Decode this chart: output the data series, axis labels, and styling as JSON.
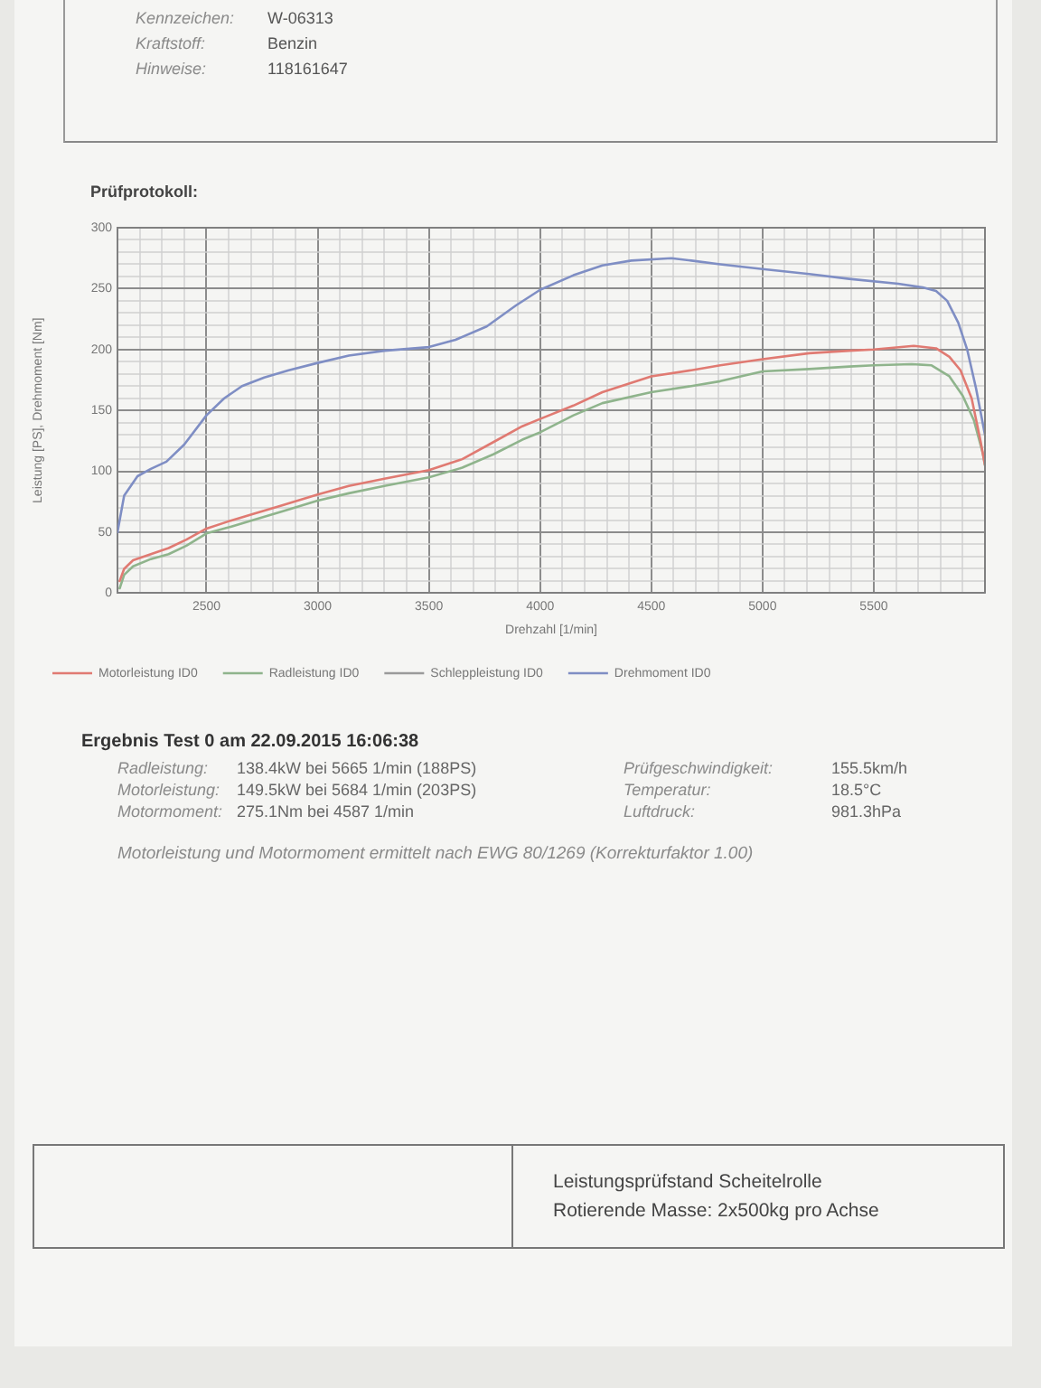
{
  "chart_data": {
    "type": "line",
    "title": "Prüfprotokoll:",
    "xlabel": "Drehzahl [1/min]",
    "ylabel": "Leistung [PS], Drehmoment [Nm]",
    "xlim": [
      2100,
      6000
    ],
    "xticks": [
      {
        "value": 2100,
        "label": null
      },
      {
        "value": 2200,
        "label": null
      },
      {
        "value": 2300,
        "label": null
      },
      {
        "value": 2400,
        "label": null
      },
      2500,
      {
        "value": 2600,
        "label": null
      },
      {
        "value": 2700,
        "label": null
      },
      {
        "value": 2800,
        "label": null
      },
      {
        "value": 2900,
        "label": null
      },
      3000,
      {
        "value": 3100,
        "label": null
      },
      {
        "value": 3200,
        "label": null
      },
      {
        "value": 3300,
        "label": null
      },
      {
        "value": 3400,
        "label": null
      },
      3500,
      {
        "value": 3600,
        "label": null
      },
      {
        "value": 3700,
        "label": null
      },
      {
        "value": 3800,
        "label": null
      },
      {
        "value": 3900,
        "label": null
      },
      4000,
      {
        "value": 4100,
        "label": null
      },
      {
        "value": 4200,
        "label": null
      },
      {
        "value": 4300,
        "label": null
      },
      {
        "value": 4400,
        "label": null
      },
      4500,
      {
        "value": 4600,
        "label": null
      },
      {
        "value": 4700,
        "label": null
      },
      {
        "value": 4800,
        "label": null
      },
      {
        "value": 4900,
        "label": null
      },
      5000,
      {
        "value": 5100,
        "label": null
      },
      {
        "value": 5200,
        "label": null
      },
      {
        "value": 5300,
        "label": null
      },
      {
        "value": 5400,
        "label": null
      },
      5500,
      {
        "value": 5600,
        "label": null
      },
      {
        "value": 5700,
        "label": null
      },
      {
        "value": 5800,
        "label": null
      },
      {
        "value": 5900,
        "label": null
      }
    ],
    "ylim": [
      0,
      300
    ],
    "yticks": [
      0,
      {
        "value": 10,
        "label": null
      },
      {
        "value": 20,
        "label": null
      },
      {
        "value": 30,
        "label": null
      },
      {
        "value": 40,
        "label": null
      },
      50,
      {
        "value": 60,
        "label": null
      },
      {
        "value": 70,
        "label": null
      },
      {
        "value": 80,
        "label": null
      },
      {
        "value": 90,
        "label": null
      },
      100,
      {
        "value": 110,
        "label": null
      },
      {
        "value": 120,
        "label": null
      },
      {
        "value": 130,
        "label": null
      },
      {
        "value": 140,
        "label": null
      },
      150,
      {
        "value": 160,
        "label": null
      },
      {
        "value": 170,
        "label": null
      },
      {
        "value": 180,
        "label": null
      },
      {
        "value": 190,
        "label": null
      },
      200,
      {
        "value": 210,
        "label": null
      },
      {
        "value": 220,
        "label": null
      },
      {
        "value": 230,
        "label": null
      },
      {
        "value": 240,
        "label": null
      },
      250,
      {
        "value": 260,
        "label": null
      },
      {
        "value": 270,
        "label": null
      },
      {
        "value": 280,
        "label": null
      },
      {
        "value": 290,
        "label": null
      },
      300
    ],
    "grid": true,
    "legend": "bottom left",
    "series": [
      {
        "name": "Motorleistung ID0",
        "color": "#e07a72",
        "x": [
          2110,
          2130,
          2170,
          2250,
          2330,
          2410,
          2500,
          2600,
          2710,
          2840,
          3000,
          3140,
          3300,
          3500,
          3650,
          3790,
          3920,
          4000,
          4150,
          4280,
          4500,
          4680,
          4810,
          5000,
          5210,
          5390,
          5500,
          5680,
          5780,
          5840,
          5890,
          5940,
          5980,
          6000
        ],
        "values": [
          10,
          20,
          27,
          32,
          37,
          44,
          53,
          59,
          65,
          72,
          81,
          88,
          94,
          101,
          110,
          124,
          137,
          143,
          154,
          165,
          178,
          183,
          187,
          192,
          197,
          199,
          200,
          203,
          201,
          194,
          183,
          160,
          125,
          105
        ]
      },
      {
        "name": "Radleistung ID0",
        "color": "#8fb48c",
        "x": [
          2110,
          2130,
          2170,
          2250,
          2330,
          2410,
          2500,
          2600,
          2710,
          2840,
          3000,
          3140,
          3300,
          3500,
          3650,
          3790,
          3920,
          4000,
          4150,
          4280,
          4500,
          4680,
          4810,
          5000,
          5210,
          5390,
          5500,
          5670,
          5760,
          5840,
          5900,
          5950,
          5990,
          6000
        ],
        "values": [
          4,
          15,
          22,
          28,
          32,
          39,
          49,
          54,
          60,
          67,
          76,
          82,
          88,
          95,
          103,
          114,
          126,
          132,
          146,
          156,
          165,
          170,
          174,
          182,
          184,
          186,
          187,
          188,
          187,
          178,
          162,
          142,
          115,
          105
        ]
      },
      {
        "name": "Schleppleistung ID0",
        "color": "#9a9a9a"
      },
      {
        "name": "Drehmoment ID0",
        "color": "#7f8ec4",
        "x": [
          2100,
          2130,
          2190,
          2250,
          2320,
          2400,
          2500,
          2580,
          2660,
          2760,
          2870,
          3000,
          3140,
          3300,
          3500,
          3620,
          3760,
          3890,
          4000,
          4150,
          4280,
          4410,
          4590,
          4680,
          4810,
          5000,
          5210,
          5390,
          5610,
          5720,
          5780,
          5830,
          5880,
          5920,
          5960,
          6000
        ],
        "values": [
          50,
          80,
          96,
          102,
          108,
          122,
          146,
          160,
          170,
          177,
          183,
          189,
          195,
          199,
          202,
          208,
          219,
          236,
          249,
          261,
          269,
          273,
          275,
          273,
          270,
          266,
          262,
          258,
          254,
          251,
          248,
          240,
          222,
          200,
          168,
          130
        ]
      }
    ],
    "annotations": [
      "Kennzeichen: W-06313",
      "Kraftstoff: Benzin",
      "Hinweise: 118161647",
      "Ergebnis Test 0 am 22.09.2015 16:06:38",
      "Radleistung: 138.4kW bei 5665 1/min (188PS)",
      "Prüfgeschwindigkeit: 155.5km/h",
      "Motorleistung: 149.5kW bei 5684 1/min (203PS)",
      "Temperatur: 18.5°C",
      "Motormoment: 275.1Nm bei 4587 1/min",
      "Luftdruck: 981.3hPa",
      "Motorleistung und Motormoment ermittelt nach EWG 80/1269 (Korrekturfaktor 1.00)",
      "Leistungsprüfstand Scheitelrolle",
      "Rotierende Masse: 2x500kg pro Achse"
    ]
  }
}
